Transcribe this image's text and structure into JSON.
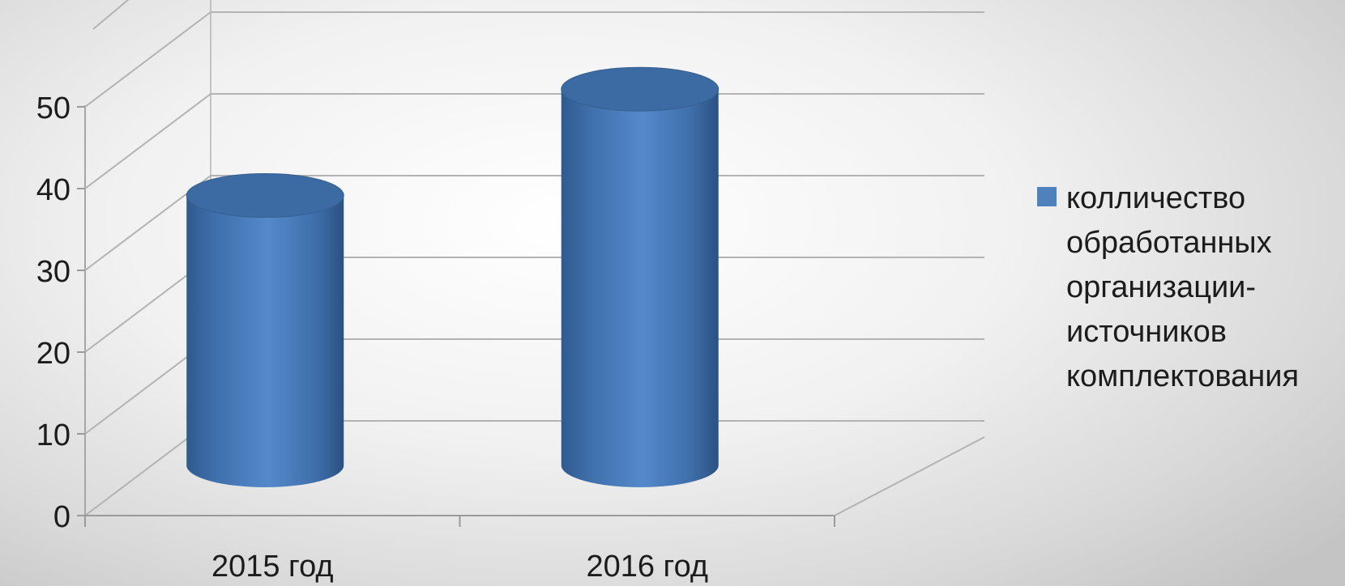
{
  "chart_data": {
    "type": "bar",
    "style": "3d-cylinder",
    "categories": [
      "2015 год",
      "2016 год"
    ],
    "series": [
      {
        "name": "колличество обработанных организации-источников комплектования",
        "values": [
          35,
          48
        ]
      }
    ],
    "ylim": [
      0,
      60
    ],
    "yticks": [
      "0",
      "10",
      "20",
      "30",
      "40",
      "50"
    ],
    "grid": true,
    "legend": "right",
    "colors": {
      "bar": "#4f81bd",
      "bar_dark": "#2f5a8f",
      "bar_top": "#3c6aa2",
      "grid": "#b3b3b3"
    }
  }
}
